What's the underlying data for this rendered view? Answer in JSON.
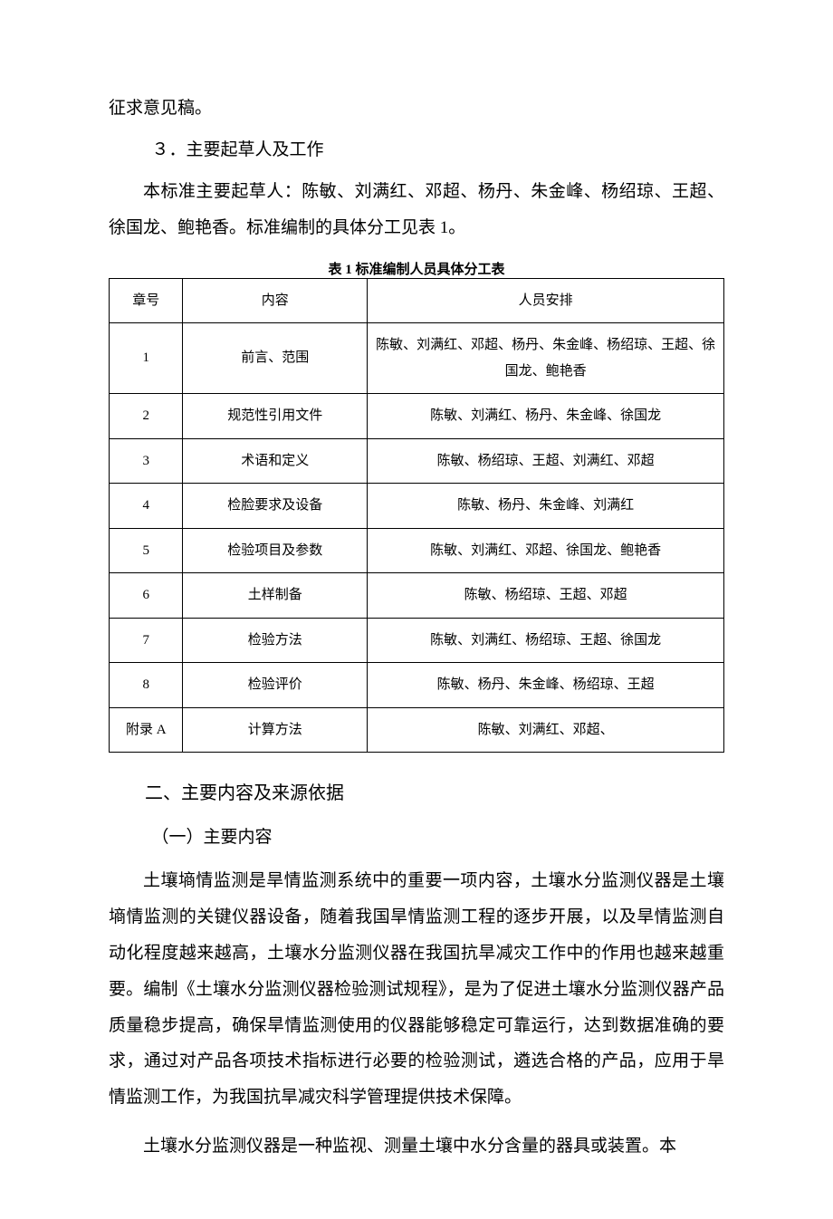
{
  "colors": {
    "background": "#ffffff",
    "text": "#000000",
    "table_border": "#000000"
  },
  "typography": {
    "body_font_family": "SimSun",
    "body_fontsize_pt": 14,
    "body_line_height": 2.1,
    "caption_fontsize_pt": 11,
    "table_fontsize_pt": 11
  },
  "top_fragment": "征求意见稿。",
  "section3": {
    "number_title": "３．主要起草人及工作",
    "para": "本标准主要起草人：陈敏、刘满红、邓超、杨丹、朱金峰、杨绍琼、王超、徐国龙、鲍艳香。标准编制的具体分工见表 1。"
  },
  "table": {
    "caption": "表 1 标准编制人员具体分工表",
    "columns": [
      "章号",
      "内容",
      "人员安排"
    ],
    "column_widths_pct": [
      12,
      30,
      58
    ],
    "rows": [
      {
        "chapter": "1",
        "content": "前言、范围",
        "people": "陈敏、刘满红、邓超、杨丹、朱金峰、杨绍琼、王超、徐国龙、鲍艳香"
      },
      {
        "chapter": "2",
        "content": "规范性引用文件",
        "people": "陈敏、刘满红、杨丹、朱金峰、徐国龙"
      },
      {
        "chapter": "3",
        "content": "术语和定义",
        "people": "陈敏、杨绍琼、王超、刘满红、邓超"
      },
      {
        "chapter": "4",
        "content": "检脸要求及设备",
        "people": "陈敏、杨丹、朱金峰、刘满红"
      },
      {
        "chapter": "5",
        "content": "检验项目及参数",
        "people": "陈敏、刘满红、邓超、徐国龙、鲍艳香"
      },
      {
        "chapter": "6",
        "content": "土样制备",
        "people": "陈敏、杨绍琼、王超、邓超"
      },
      {
        "chapter": "7",
        "content": "检验方法",
        "people": "陈敏、刘满红、杨绍琼、王超、徐国龙"
      },
      {
        "chapter": "8",
        "content": "检验评价",
        "people": "陈敏、杨丹、朱金峰、杨绍琼、王超"
      },
      {
        "chapter": "附录 A",
        "content": "计算方法",
        "people": "陈敏、刘满红、邓超、"
      }
    ]
  },
  "section_main": {
    "heading": "二、主要内容及来源依据",
    "sub_heading": "（一）主要内容",
    "para1": "土壤墒情监测是旱情监测系统中的重要一项内容，土壤水分监测仪器是土壤墒情监测的关键仪器设备，随着我国旱情监测工程的逐步开展，以及旱情监测自动化程度越来越高，土壤水分监测仪器在我国抗旱减灾工作中的作用也越来越重要。编制《土壤水分监测仪器检验测试规程》，是为了促进土壤水分监测仪器产品质量稳步提高，确保旱情监测使用的仪器能够稳定可靠运行，达到数据准确的要求，通过对产品各项技术指标进行必要的检验测试，遴选合格的产品，应用于旱情监测工作，为我国抗旱减灾科学管理提供技术保障。",
    "para2": "土壤水分监测仪器是一种监视、测量土壤中水分含量的器具或装置。本"
  }
}
